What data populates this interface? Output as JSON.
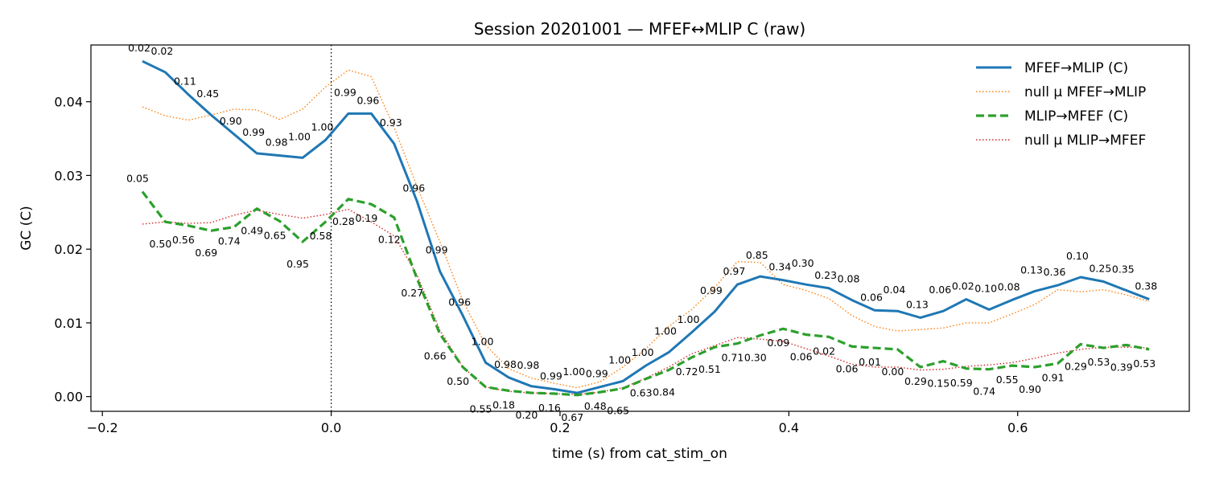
{
  "chart_data": {
    "type": "line",
    "title": "Session 20201001 — MFEF↔MLIP C (raw)",
    "xlabel": "time (s) from cat_stim_on",
    "ylabel": "GC (C)",
    "xlim": [
      -0.21,
      0.75
    ],
    "ylim": [
      -0.002,
      0.0477
    ],
    "xticks": [
      -0.2,
      0.0,
      0.2,
      0.4,
      0.6
    ],
    "xtick_labels": [
      "−0.2",
      "0.0",
      "0.2",
      "0.4",
      "0.6"
    ],
    "yticks": [
      0.0,
      0.01,
      0.02,
      0.03,
      0.04
    ],
    "ytick_labels": [
      "0.00",
      "0.01",
      "0.02",
      "0.03",
      "0.04"
    ],
    "vline_x": 0.0,
    "legend_position": "top-right",
    "x": [
      -0.165,
      -0.145,
      -0.125,
      -0.105,
      -0.085,
      -0.065,
      -0.045,
      -0.025,
      -0.005,
      0.015,
      0.035,
      0.055,
      0.075,
      0.095,
      0.115,
      0.135,
      0.155,
      0.175,
      0.195,
      0.215,
      0.235,
      0.255,
      0.275,
      0.295,
      0.315,
      0.335,
      0.355,
      0.375,
      0.395,
      0.415,
      0.435,
      0.455,
      0.475,
      0.495,
      0.515,
      0.535,
      0.555,
      0.575,
      0.595,
      0.615,
      0.635,
      0.655,
      0.675,
      0.695,
      0.715
    ],
    "series": [
      {
        "name": "MFEF→MLIP (C)",
        "color": "#1f77b4",
        "style": "solid",
        "values": [
          0.0455,
          0.044,
          0.041,
          0.0382,
          0.0356,
          0.033,
          0.0327,
          0.0324,
          0.0348,
          0.0384,
          0.0384,
          0.0343,
          0.0265,
          0.017,
          0.011,
          0.0046,
          0.0026,
          0.0014,
          0.001,
          0.0005,
          0.0013,
          0.0021,
          0.0042,
          0.006,
          0.0087,
          0.0115,
          0.0152,
          0.0163,
          0.0158,
          0.0152,
          0.0147,
          0.0131,
          0.0117,
          0.0116,
          0.0107,
          0.0116,
          0.0132,
          0.0118,
          0.0131,
          0.0143,
          0.0151,
          0.0162,
          0.0156,
          0.0144,
          0.0132
        ]
      },
      {
        "name": "null μ MFEF→MLIP",
        "color": "#ff7f0e",
        "style": "dotted",
        "values": [
          0.0393,
          0.0381,
          0.0375,
          0.0382,
          0.039,
          0.0389,
          0.0376,
          0.039,
          0.042,
          0.0443,
          0.0434,
          0.0365,
          0.0285,
          0.021,
          0.013,
          0.007,
          0.0038,
          0.0025,
          0.0018,
          0.0012,
          0.002,
          0.004,
          0.0065,
          0.0095,
          0.0118,
          0.0148,
          0.0183,
          0.0182,
          0.0152,
          0.0144,
          0.0133,
          0.011,
          0.0095,
          0.0089,
          0.0091,
          0.0093,
          0.01,
          0.01,
          0.0112,
          0.0125,
          0.0145,
          0.0142,
          0.0145,
          0.0138,
          0.0129
        ]
      },
      {
        "name": "MLIP→MFEF (C)",
        "color": "#2ca02c",
        "style": "dashed",
        "values": [
          0.0278,
          0.0237,
          0.0232,
          0.0225,
          0.023,
          0.0255,
          0.0238,
          0.021,
          0.0237,
          0.0268,
          0.0261,
          0.0243,
          0.016,
          0.0085,
          0.004,
          0.0013,
          0.0008,
          0.0005,
          0.0004,
          0.0002,
          0.0006,
          0.0011,
          0.0024,
          0.0036,
          0.0053,
          0.0067,
          0.0072,
          0.0083,
          0.0092,
          0.0084,
          0.0081,
          0.0068,
          0.0066,
          0.0064,
          0.004,
          0.0048,
          0.0038,
          0.0037,
          0.0042,
          0.004,
          0.0045,
          0.0071,
          0.0066,
          0.007,
          0.0064
        ]
      },
      {
        "name": "null μ MLIP→MFEF",
        "color": "#d62728",
        "style": "dotted",
        "values": [
          0.0234,
          0.0237,
          0.0235,
          0.0236,
          0.0246,
          0.0253,
          0.0247,
          0.0242,
          0.0247,
          0.0254,
          0.0237,
          0.0218,
          0.0165,
          0.009,
          0.004,
          0.0013,
          0.0007,
          0.0005,
          0.0004,
          0.0003,
          0.0006,
          0.0012,
          0.0025,
          0.004,
          0.0058,
          0.0069,
          0.008,
          0.0078,
          0.0075,
          0.0065,
          0.0055,
          0.0044,
          0.004,
          0.004,
          0.0036,
          0.0037,
          0.0041,
          0.0043,
          0.0046,
          0.0052,
          0.0059,
          0.0064,
          0.0067,
          0.0067,
          0.0066
        ]
      }
    ],
    "annotations": [
      {
        "series": 0,
        "labels": [
          "0.02",
          "0.02",
          "0.11",
          "0.45",
          "0.90",
          "0.99",
          "0.98",
          "1.00",
          "1.00",
          "0.99",
          "0.96",
          "0.93",
          "0.96",
          "0.99",
          "0.96",
          "1.00",
          "0.98",
          "0.98",
          "0.99",
          "1.00",
          "0.99",
          "1.00",
          "1.00",
          "1.00",
          "1.00",
          "0.99",
          "0.97",
          "0.85",
          "0.34",
          "0.30",
          "0.23",
          "0.08",
          "0.06",
          "0.04",
          "0.13",
          "0.06",
          "0.02",
          "0.10",
          "0.08",
          "0.13",
          "0.36",
          "0.10",
          "0.25",
          "0.35",
          "0.38"
        ]
      },
      {
        "series": 2,
        "labels": [
          "0.05",
          "0.50",
          "0.56",
          "0.69",
          "0.74",
          "0.49",
          "0.65",
          "0.95",
          "0.58",
          "0.28",
          "0.19",
          "0.12",
          "0.27",
          "0.66",
          "0.50",
          "0.55",
          "0.18",
          "0.20",
          "0.16",
          "0.67",
          "0.48",
          "0.65",
          "0.63",
          "0.84",
          "0.72",
          "0.51",
          "0.71",
          "0.30",
          "0.09",
          "0.06",
          "0.02",
          "0.06",
          "0.01",
          "0.00",
          "0.29",
          "0.15",
          "0.59",
          "0.74",
          "0.55",
          "0.90",
          "0.91",
          "0.29",
          "0.53",
          "0.39",
          "0.53"
        ]
      }
    ]
  }
}
